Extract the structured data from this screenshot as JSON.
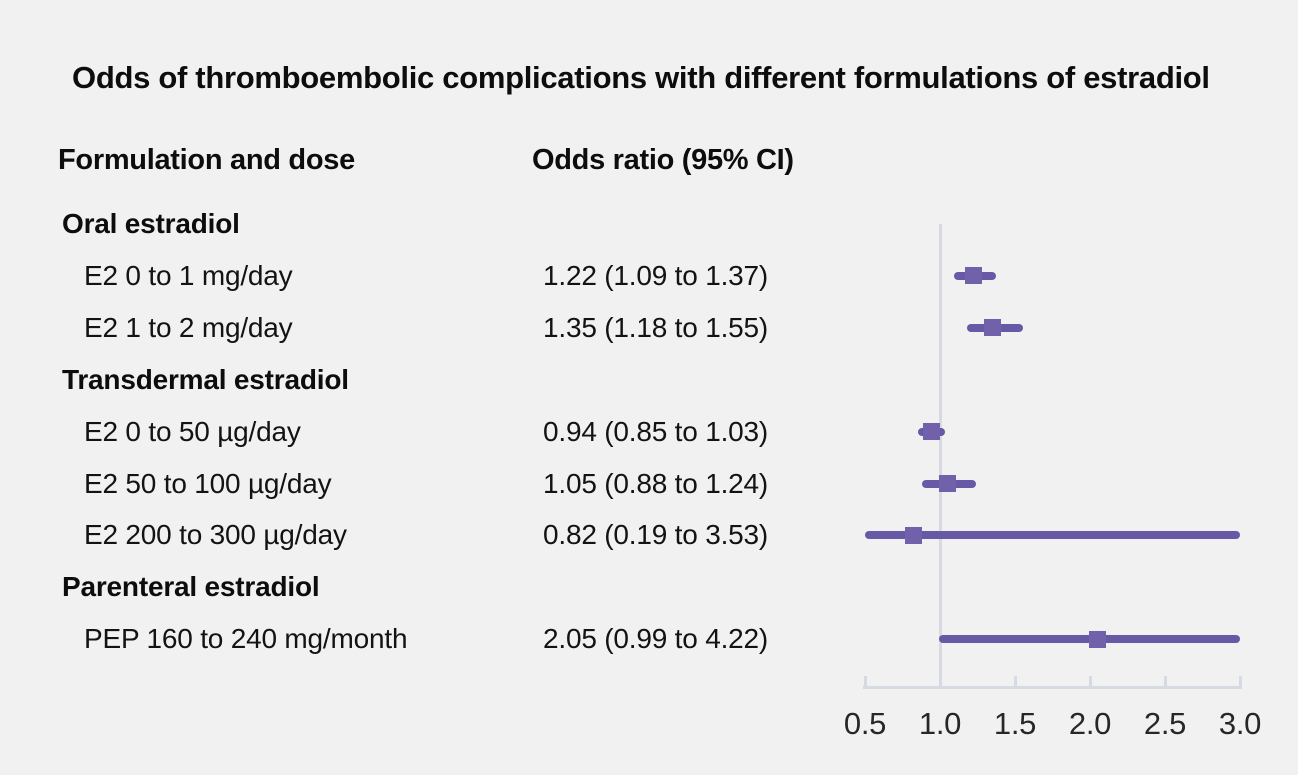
{
  "title": "Odds of thromboembolic complications with different formulations of estradiol",
  "columns": {
    "formulation": "Formulation and dose",
    "odds_ratio": "Odds ratio (95% CI)"
  },
  "chart_data": {
    "type": "forest",
    "title": "Odds of thromboembolic complications with different formulations of estradiol",
    "xlabel": "",
    "ylabel": "",
    "legend": "none",
    "grid": "off",
    "axis": {
      "min": 0.5,
      "max": 3.0,
      "reference_line": 1.0,
      "tick_labels": [
        "0.5",
        "1.0",
        "1.5",
        "2.0",
        "2.5",
        "3.0"
      ],
      "tick_values": [
        0.5,
        1.0,
        1.5,
        2.0,
        2.5,
        3.0
      ]
    },
    "rows": [
      {
        "label": "Oral estradiol",
        "group": true
      },
      {
        "label": "E2 0 to 1 mg/day",
        "value_text": "1.22 (1.09 to 1.37)",
        "estimate": 1.22,
        "ci_low": 1.09,
        "ci_high": 1.37
      },
      {
        "label": "E2 1 to 2 mg/day",
        "value_text": "1.35 (1.18 to 1.55)",
        "estimate": 1.35,
        "ci_low": 1.18,
        "ci_high": 1.55
      },
      {
        "label": "Transdermal estradiol",
        "group": true
      },
      {
        "label": "E2 0 to 50 µg/day",
        "value_text": "0.94 (0.85 to 1.03)",
        "estimate": 0.94,
        "ci_low": 0.85,
        "ci_high": 1.03
      },
      {
        "label": "E2 50 to 100 µg/day",
        "value_text": "1.05 (0.88 to 1.24)",
        "estimate": 1.05,
        "ci_low": 0.88,
        "ci_high": 1.24
      },
      {
        "label": "E2 200 to 300 µg/day",
        "value_text": "0.82 (0.19 to 3.53)",
        "estimate": 0.82,
        "ci_low": 0.19,
        "ci_high": 3.53
      },
      {
        "label": "Parenteral estradiol",
        "group": true
      },
      {
        "label": "PEP 160 to 240 mg/month",
        "value_text": "2.05 (0.99 to 4.22)",
        "estimate": 2.05,
        "ci_low": 0.99,
        "ci_high": 4.22
      }
    ]
  },
  "colors": {
    "background": "#f1f1f2",
    "ci_line": "#6859a6",
    "marker": "#7161ab",
    "reference_line": "#d8dae3",
    "axis_line": "#d6dae3",
    "text": "#131314"
  }
}
